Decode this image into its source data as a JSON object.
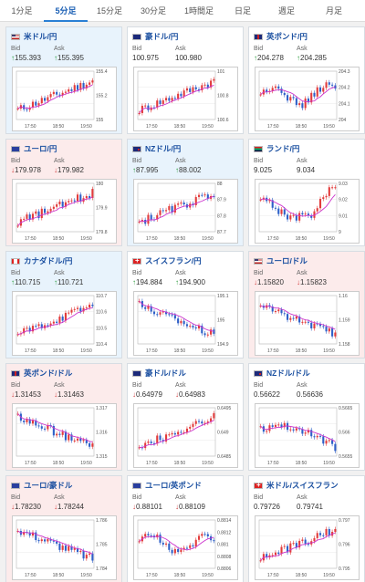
{
  "tabs": [
    {
      "label": "1分足",
      "active": false,
      "w": 48
    },
    {
      "label": "5分足",
      "active": true,
      "w": 48
    },
    {
      "label": "15分足",
      "active": false,
      "w": 48
    },
    {
      "label": "30分足",
      "active": false,
      "w": 48
    },
    {
      "label": "1時間足",
      "active": false,
      "w": 52
    },
    {
      "label": "日足",
      "active": false,
      "w": 44
    },
    {
      "label": "週足",
      "active": false,
      "w": 52
    },
    {
      "label": "月足",
      "active": false,
      "w": 52
    }
  ],
  "labels": {
    "bid": "Bid",
    "ask": "Ask"
  },
  "cards": [
    {
      "title": "米ドル/円",
      "flag": "us",
      "trend": "up",
      "bid": "155.393",
      "ask": "155.395",
      "dir": "up",
      "yticks": [
        "155.4",
        "155.2",
        "155"
      ],
      "xticks": [
        "17:50",
        "18:50",
        "19:50"
      ],
      "shape": "rise"
    },
    {
      "title": "豪ドル/円",
      "flag": "au",
      "trend": "flat",
      "bid": "100.975",
      "ask": "100.980",
      "dir": "none",
      "yticks": [
        "101",
        "100.8",
        "100.6"
      ],
      "xticks": [
        "17:50",
        "18:50",
        "19:50"
      ],
      "shape": "rise"
    },
    {
      "title": "英ポンド/円",
      "flag": "gb",
      "trend": "flat",
      "bid": "204.278",
      "ask": "204.285",
      "dir": "up",
      "yticks": [
        "204.3",
        "204.2",
        "204.1",
        "204"
      ],
      "xticks": [
        "17:50",
        "18:50",
        "19:50"
      ],
      "shape": "choppy"
    },
    {
      "title": "ユーロ/円",
      "flag": "eu",
      "trend": "down",
      "bid": "179.978",
      "ask": "179.982",
      "dir": "down",
      "yticks": [
        "180",
        "179.9",
        "179.8"
      ],
      "xticks": [
        "17:50",
        "18:50",
        "19:50"
      ],
      "shape": "rise"
    },
    {
      "title": "NZドル/円",
      "flag": "nz",
      "trend": "up",
      "bid": "87.995",
      "ask": "88.002",
      "dir": "up",
      "yticks": [
        "88",
        "87.9",
        "87.8",
        "87.7"
      ],
      "xticks": [
        "17:50",
        "18:50",
        "19:50"
      ],
      "shape": "rise"
    },
    {
      "title": "ランド/円",
      "flag": "za",
      "trend": "flat",
      "bid": "9.025",
      "ask": "9.034",
      "dir": "none",
      "yticks": [
        "9.03",
        "9.02",
        "9.01",
        "9"
      ],
      "xticks": [
        "17:50",
        "18:50",
        "19:50"
      ],
      "shape": "vshape"
    },
    {
      "title": "カナダドル/円",
      "flag": "ca",
      "trend": "up",
      "bid": "110.715",
      "ask": "110.721",
      "dir": "up",
      "yticks": [
        "110.7",
        "110.6",
        "110.5",
        "110.4"
      ],
      "xticks": [
        "17:50",
        "18:50",
        "19:50"
      ],
      "shape": "rise"
    },
    {
      "title": "スイスフラン/円",
      "flag": "ch",
      "trend": "flat",
      "bid": "194.884",
      "ask": "194.900",
      "dir": "up",
      "yticks": [
        "195.1",
        "195",
        "194.9"
      ],
      "xticks": [
        "17:50",
        "18:50",
        "19:50"
      ],
      "shape": "fall"
    },
    {
      "title": "ユーロ/ドル",
      "flag": "us",
      "trend": "down",
      "bid": "1.15820",
      "ask": "1.15823",
      "dir": "down",
      "yticks": [
        "1.16",
        "1.159",
        "1.158"
      ],
      "xticks": [
        "17:50",
        "18:50",
        "19:50"
      ],
      "shape": "fall"
    },
    {
      "title": "英ポンド/ドル",
      "flag": "gb",
      "trend": "down",
      "bid": "1.31453",
      "ask": "1.31463",
      "dir": "down",
      "yticks": [
        "1.317",
        "1.316",
        "1.315"
      ],
      "xticks": [
        "17:50",
        "18:50",
        "19:50"
      ],
      "shape": "fall"
    },
    {
      "title": "豪ドル/ドル",
      "flag": "au",
      "trend": "flat",
      "bid": "0.64979",
      "ask": "0.64983",
      "dir": "down",
      "yticks": [
        "0.6495",
        "0.649",
        "0.6485"
      ],
      "xticks": [
        "17:50",
        "18:50",
        "19:50"
      ],
      "shape": "rise"
    },
    {
      "title": "NZドル/ドル",
      "flag": "nz",
      "trend": "flat",
      "bid": "0.56622",
      "ask": "0.56636",
      "dir": "none",
      "yticks": [
        "0.5665",
        "0.566",
        "0.5655"
      ],
      "xticks": [
        "17:50",
        "18:50",
        "19:50"
      ],
      "shape": "dipend"
    },
    {
      "title": "ユーロ/豪ドル",
      "flag": "eu",
      "trend": "down",
      "bid": "1.78230",
      "ask": "1.78244",
      "dir": "down",
      "yticks": [
        "1.786",
        "1.785",
        "1.784"
      ],
      "xticks": [
        "17:50",
        "18:50",
        "19:50"
      ],
      "shape": "fall"
    },
    {
      "title": "ユーロ/英ポンド",
      "flag": "eu",
      "trend": "flat",
      "bid": "0.88101",
      "ask": "0.88109",
      "dir": "down",
      "yticks": [
        "0.8814",
        "0.8812",
        "0.881",
        "0.8808",
        "0.8806"
      ],
      "xticks": [
        "17:50",
        "18:50",
        "19:50"
      ],
      "shape": "choppy"
    },
    {
      "title": "米ドル/スイスフラン",
      "flag": "ch",
      "trend": "flat",
      "bid": "0.79726",
      "ask": "0.79741",
      "dir": "none",
      "yticks": [
        "0.797",
        "0.796",
        "0.795"
      ],
      "xticks": [
        "17:50",
        "18:50",
        "19:50"
      ],
      "shape": "rise"
    }
  ],
  "colors": {
    "up_candle": "#e23b3b",
    "down_candle": "#2d5fc8",
    "ma_line": "#cc33cc",
    "up_arrow": "#2a9a3a",
    "down_arrow": "#d23a3a"
  }
}
